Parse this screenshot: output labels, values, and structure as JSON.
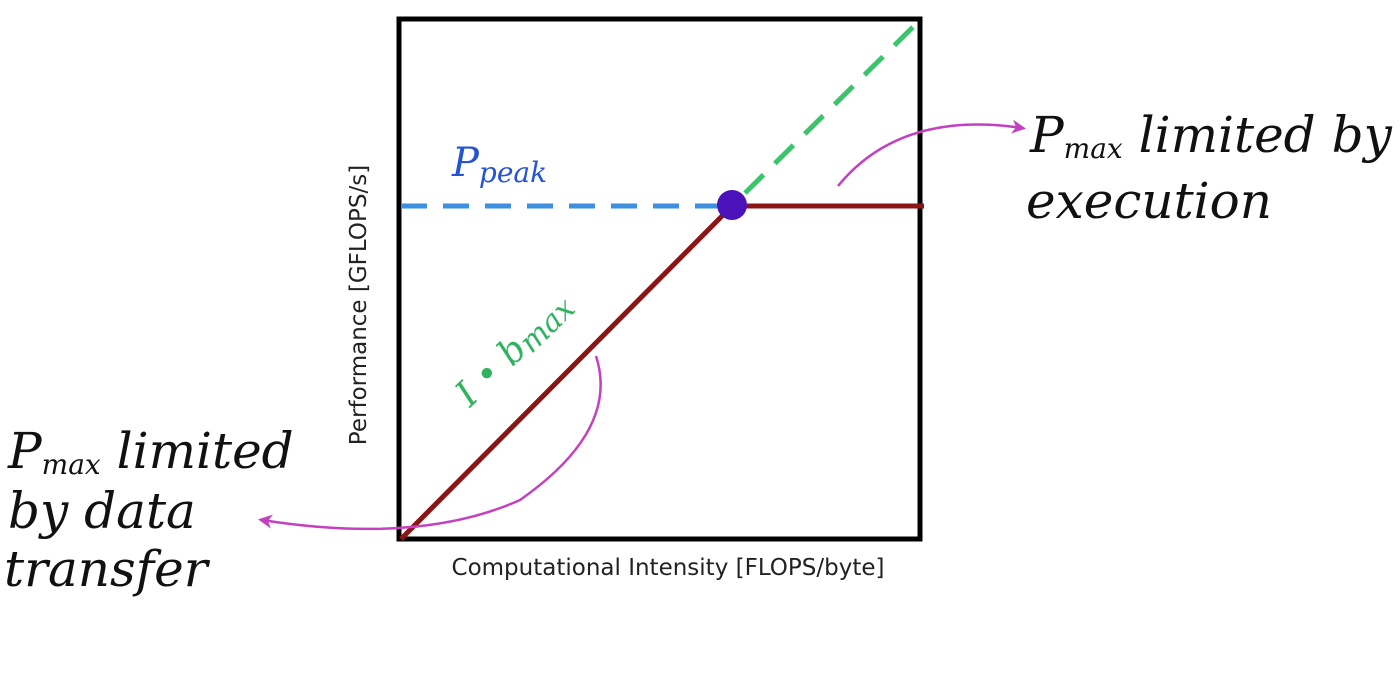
{
  "diagram": {
    "axes": {
      "x_label": "Computational Intensity [FLOPS/byte]",
      "y_label": "Performance [GFLOPS/s]"
    },
    "curve_labels": {
      "peak": {
        "main": "P",
        "sub": "peak",
        "color": "#2454d4"
      },
      "bandwidth": {
        "prefix": "I • b",
        "sub": "max",
        "color": "#2fb35e"
      }
    },
    "annotations": {
      "execution": {
        "line1_main": "P",
        "line1_sub": "max",
        "line1_rest": " limited by",
        "line2": "execution"
      },
      "data_transfer": {
        "line1_main": "P",
        "line1_sub": "max",
        "line1_rest": " limited",
        "line2": "by data",
        "line3": "transfer"
      }
    },
    "colors": {
      "roofline": "#8b1515",
      "peak_dashed": "#3d8fe0",
      "slope_dashed": "#3cc46a",
      "ridge_point": "#4a12b8",
      "arrows": "#c340c0",
      "frame": "#000000"
    }
  }
}
